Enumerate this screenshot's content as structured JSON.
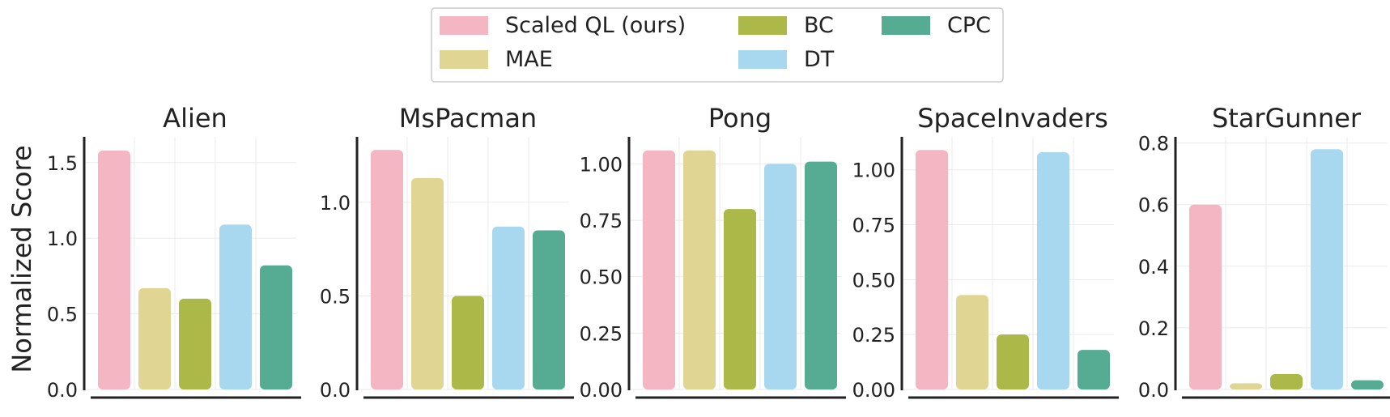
{
  "chart_data": {
    "type": "bar",
    "ylabel": "Normalized Score",
    "legend": {
      "placement": "top-center",
      "entries": [
        {
          "name": "Scaled QL (ours)",
          "color": "#f4b6c2"
        },
        {
          "name": "MAE",
          "color": "#e0d592"
        },
        {
          "name": "BC",
          "color": "#acb847"
        },
        {
          "name": "DT",
          "color": "#a8d8f0"
        },
        {
          "name": "CPC",
          "color": "#55ac93"
        }
      ]
    },
    "methods": [
      "Scaled QL (ours)",
      "MAE",
      "BC",
      "DT",
      "CPC"
    ],
    "colors": [
      "#f4b6c2",
      "#e0d592",
      "#acb847",
      "#a8d8f0",
      "#55ac93"
    ],
    "grid": true,
    "panels": [
      {
        "title": "Alien",
        "values": [
          1.58,
          0.67,
          0.6,
          1.09,
          0.82
        ],
        "ylim": [
          0,
          1.67
        ],
        "ticks": [
          0.0,
          0.5,
          1.0,
          1.5
        ],
        "tick_labels": [
          "0.0",
          "0.5",
          "1.0",
          "1.5"
        ]
      },
      {
        "title": "MsPacman",
        "values": [
          1.28,
          1.13,
          0.5,
          0.87,
          0.85
        ],
        "ylim": [
          0,
          1.35
        ],
        "ticks": [
          0.0,
          0.5,
          1.0
        ],
        "tick_labels": [
          "0.0",
          "0.5",
          "1.0"
        ]
      },
      {
        "title": "Pong",
        "values": [
          1.06,
          1.06,
          0.8,
          1.0,
          1.01
        ],
        "ylim": [
          0,
          1.12
        ],
        "ticks": [
          0.0,
          0.25,
          0.5,
          0.75,
          1.0
        ],
        "tick_labels": [
          "0.00",
          "0.25",
          "0.50",
          "0.75",
          "1.00"
        ]
      },
      {
        "title": "SpaceInvaders",
        "values": [
          1.09,
          0.43,
          0.25,
          1.08,
          0.18
        ],
        "ylim": [
          0,
          1.15
        ],
        "ticks": [
          0.0,
          0.25,
          0.5,
          0.75,
          1.0
        ],
        "tick_labels": [
          "0.00",
          "0.25",
          "0.50",
          "0.75",
          "1.00"
        ]
      },
      {
        "title": "StarGunner",
        "values": [
          0.6,
          0.02,
          0.05,
          0.78,
          0.03
        ],
        "ylim": [
          0,
          0.82
        ],
        "ticks": [
          0.0,
          0.2,
          0.4,
          0.6,
          0.8
        ],
        "tick_labels": [
          "0.0",
          "0.2",
          "0.4",
          "0.6",
          "0.8"
        ]
      }
    ]
  }
}
